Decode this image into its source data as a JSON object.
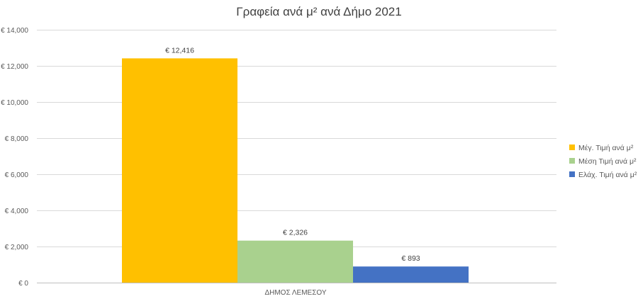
{
  "chart_data": {
    "type": "bar",
    "title": "Γραφεία ανά μ² ανά Δήμο 2021",
    "categories": [
      "ΔΗΜΟΣ ΛΕΜΕΣΟΥ"
    ],
    "series": [
      {
        "name": "Μέγ. Τιμή ανά μ²",
        "values": [
          12416
        ],
        "label": "€ 12,416",
        "color": "#FFC000"
      },
      {
        "name": "Μέση Τιμή ανά μ²",
        "values": [
          2326
        ],
        "label": "€ 2,326",
        "color": "#A9D18E"
      },
      {
        "name": "Ελάχ. Τιμή ανά μ²",
        "values": [
          893
        ],
        "label": "€ 893",
        "color": "#4472C4"
      }
    ],
    "ylim": [
      0,
      14000
    ],
    "yticks": [
      0,
      2000,
      4000,
      6000,
      8000,
      10000,
      12000,
      14000
    ],
    "ytick_labels": [
      "€ 0",
      "€ 2,000",
      "€ 4,000",
      "€ 6,000",
      "€ 8,000",
      "€ 10,000",
      "€ 12,000",
      "€ 14,000"
    ],
    "xlabel": "",
    "ylabel": "",
    "grid": true,
    "legend_position": "right"
  }
}
